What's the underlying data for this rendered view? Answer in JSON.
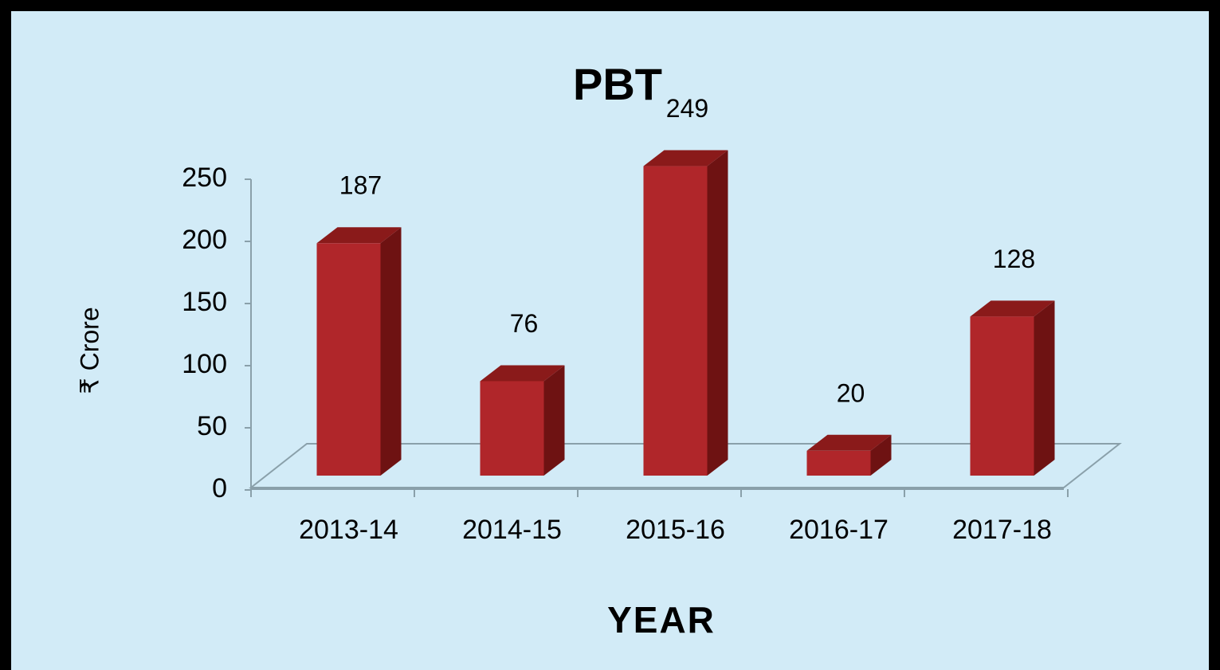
{
  "chart_data": {
    "type": "bar",
    "title": "PBT",
    "xlabel": "YEAR",
    "ylabel": "₹ Crore",
    "categories": [
      "2013-14",
      "2014-15",
      "2015-16",
      "2016-17",
      "2017-18"
    ],
    "values": [
      187,
      76,
      249,
      20,
      128
    ],
    "color": "#b0262a",
    "ylim": [
      0,
      250
    ],
    "yticks": [
      0,
      50,
      100,
      150,
      200,
      250
    ]
  }
}
